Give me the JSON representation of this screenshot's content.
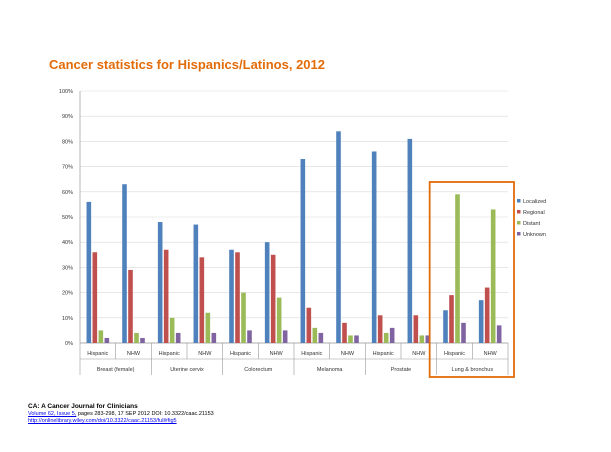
{
  "slide": {
    "title": "Cancer statistics for Hispanics/Latinos, 2012"
  },
  "citation": {
    "journal": "CA: A Cancer Journal for Clinicians",
    "volume_link": "Volume 62, Issue 5,",
    "details": " pages 283-298, 17 SEP 2012 DOI: 10.3322/caac.21153",
    "url": "http://onlinelibrary.wiley.com/doi/10.3322/caac.21153/full#fig5"
  },
  "colors": {
    "title": "#e36c0a",
    "highlight_box": "#e36c0a",
    "localized": "#4f81bd",
    "regional": "#c0504d",
    "distant": "#9bbb59",
    "unknown": "#8064a2"
  },
  "chart_data": {
    "type": "bar",
    "title": "",
    "xlabel": "",
    "ylabel": "",
    "ylim": [
      0,
      100
    ],
    "y_ticks": [
      "0%",
      "10%",
      "20%",
      "30%",
      "40%",
      "50%",
      "60%",
      "70%",
      "80%",
      "90%",
      "100%"
    ],
    "groups": [
      "Breast (female)",
      "Uterine cervix",
      "Colorectum",
      "Melanoma",
      "Prostate",
      "Lung & bronchus"
    ],
    "categories": [
      "Hispanic",
      "NHW",
      "Hispanic",
      "NHW",
      "Hispanic",
      "NHW",
      "Hispanic",
      "NHW",
      "Hispanic",
      "NHW",
      "Hispanic",
      "NHW"
    ],
    "series": [
      {
        "name": "Localized",
        "color": "#4f81bd",
        "values": [
          56,
          63,
          48,
          47,
          37,
          40,
          73,
          84,
          76,
          81,
          13,
          17
        ]
      },
      {
        "name": "Regional",
        "color": "#c0504d",
        "values": [
          36,
          29,
          37,
          34,
          36,
          35,
          14,
          8,
          11,
          11,
          19,
          22
        ]
      },
      {
        "name": "Distant",
        "color": "#9bbb59",
        "values": [
          5,
          4,
          10,
          12,
          20,
          18,
          6,
          3,
          4,
          3,
          59,
          53
        ]
      },
      {
        "name": "Unknown",
        "color": "#8064a2",
        "values": [
          2,
          2,
          4,
          4,
          5,
          5,
          4,
          3,
          6,
          3,
          8,
          7
        ]
      }
    ],
    "legend_labels": [
      "Localized",
      "Regional",
      "Distant",
      "Unknown"
    ],
    "legend_position": "right",
    "grid": true,
    "highlighted_group": "Lung & bronchus"
  }
}
